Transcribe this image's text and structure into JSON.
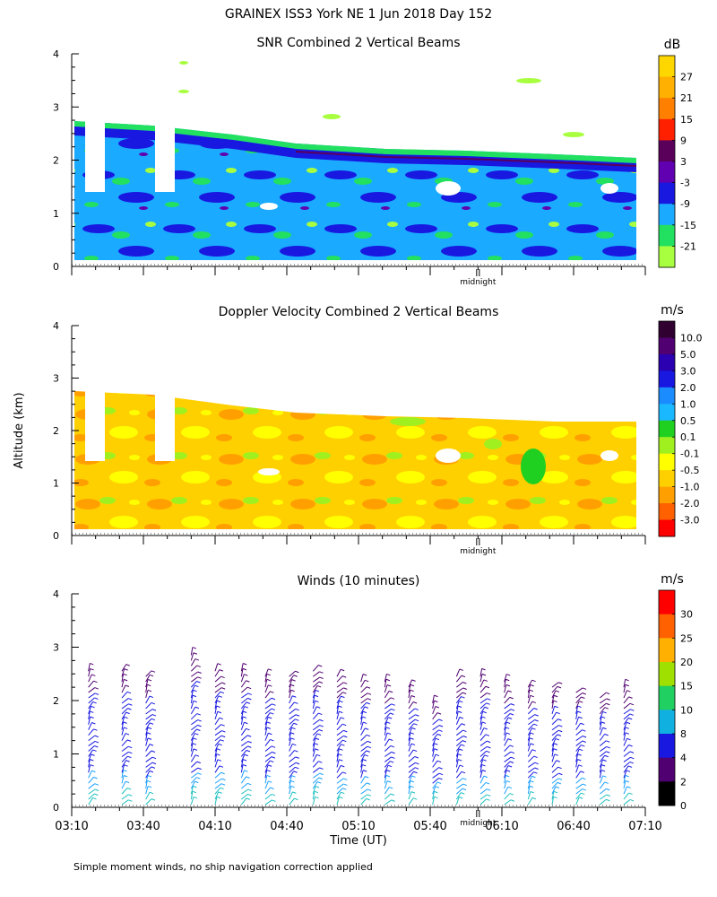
{
  "page": {
    "title": "GRAINEX ISS3 York NE   1 Jun 2018 Day 152",
    "ylabel": "Altitude (km)",
    "xlabel": "Time (UT)",
    "footer": "Simple moment winds, no ship navigation correction applied",
    "midnight_label": "midnight"
  },
  "chart_data": [
    {
      "type": "heatmap",
      "title": "SNR Combined 2 Vertical Beams",
      "ylabel": "Altitude (km)",
      "ylim": [
        0,
        4
      ],
      "yticks": [
        "0",
        "1",
        "2",
        "3",
        "4"
      ],
      "colorbar_unit": "dB",
      "colorbar_labels": [
        "27",
        "21",
        "15",
        "9",
        "3",
        "-3",
        "-9",
        "-15",
        "-21"
      ],
      "colorbar_colors": [
        "#ffd700",
        "#ffb000",
        "#ff8000",
        "#ff2000",
        "#5a005a",
        "#6000b0",
        "#1818e0",
        "#1aaaff",
        "#22e060",
        "#a8ff40"
      ],
      "data_top_km": [
        2.7,
        2.6,
        2.4,
        2.2,
        2.1,
        2.05
      ],
      "data_bottom_km": 0.1
    },
    {
      "type": "heatmap",
      "title": "Doppler Velocity Combined 2 Vertical Beams",
      "ylabel": "Altitude (km)",
      "ylim": [
        0,
        4
      ],
      "yticks": [
        "0",
        "1",
        "2",
        "3",
        "4"
      ],
      "colorbar_unit": "m/s",
      "colorbar_labels": [
        "10.0",
        "5.0",
        "3.0",
        "2.0",
        "1.0",
        "0.5",
        "0.1",
        "-0.1",
        "-0.5",
        "-1.0",
        "-2.0",
        "-3.0"
      ],
      "colorbar_colors": [
        "#300030",
        "#500070",
        "#2a00b0",
        "#1818e0",
        "#1a8cff",
        "#1ab8ff",
        "#20d020",
        "#a0f020",
        "#ffff00",
        "#ffd000",
        "#ffa000",
        "#ff6000",
        "#ff0000"
      ],
      "data_top_km": [
        2.7,
        2.6,
        2.4,
        2.3,
        2.2,
        2.15
      ],
      "data_bottom_km": 0.1
    },
    {
      "type": "scatter",
      "title": "Winds (10 minutes)",
      "xlabel": "Time (UT)",
      "ylabel": "Altitude (km)",
      "ylim": [
        0,
        4
      ],
      "yticks": [
        "0",
        "1",
        "2",
        "3",
        "4"
      ],
      "xticks": [
        "03:10",
        "03:40",
        "04:10",
        "04:40",
        "05:10",
        "05:40",
        "06:10",
        "06:40",
        "07:10"
      ],
      "xlim_minutes": [
        190,
        430
      ],
      "colorbar_unit": "m/s",
      "colorbar_labels": [
        "30",
        "25",
        "20",
        "15",
        "10",
        "8",
        "4",
        "2",
        "0"
      ],
      "colorbar_colors": [
        "#ff0000",
        "#ff6000",
        "#ffb000",
        "#a0e000",
        "#20d060",
        "#10b0e0",
        "#1818e0",
        "#500070",
        "#000000"
      ],
      "profile_times_minutes": [
        197,
        211,
        221,
        240,
        250,
        261,
        271,
        281,
        291,
        301,
        311,
        321,
        331,
        341,
        351,
        361,
        371,
        381,
        391,
        401,
        411,
        421
      ],
      "profile_tops_km": [
        2.6,
        2.6,
        2.5,
        2.9,
        2.6,
        2.6,
        2.5,
        2.5,
        2.6,
        2.5,
        2.4,
        2.4,
        2.3,
        2.0,
        2.5,
        2.5,
        2.4,
        2.3,
        2.3,
        2.2,
        2.1,
        2.3
      ],
      "midnight_minutes": 360
    }
  ]
}
